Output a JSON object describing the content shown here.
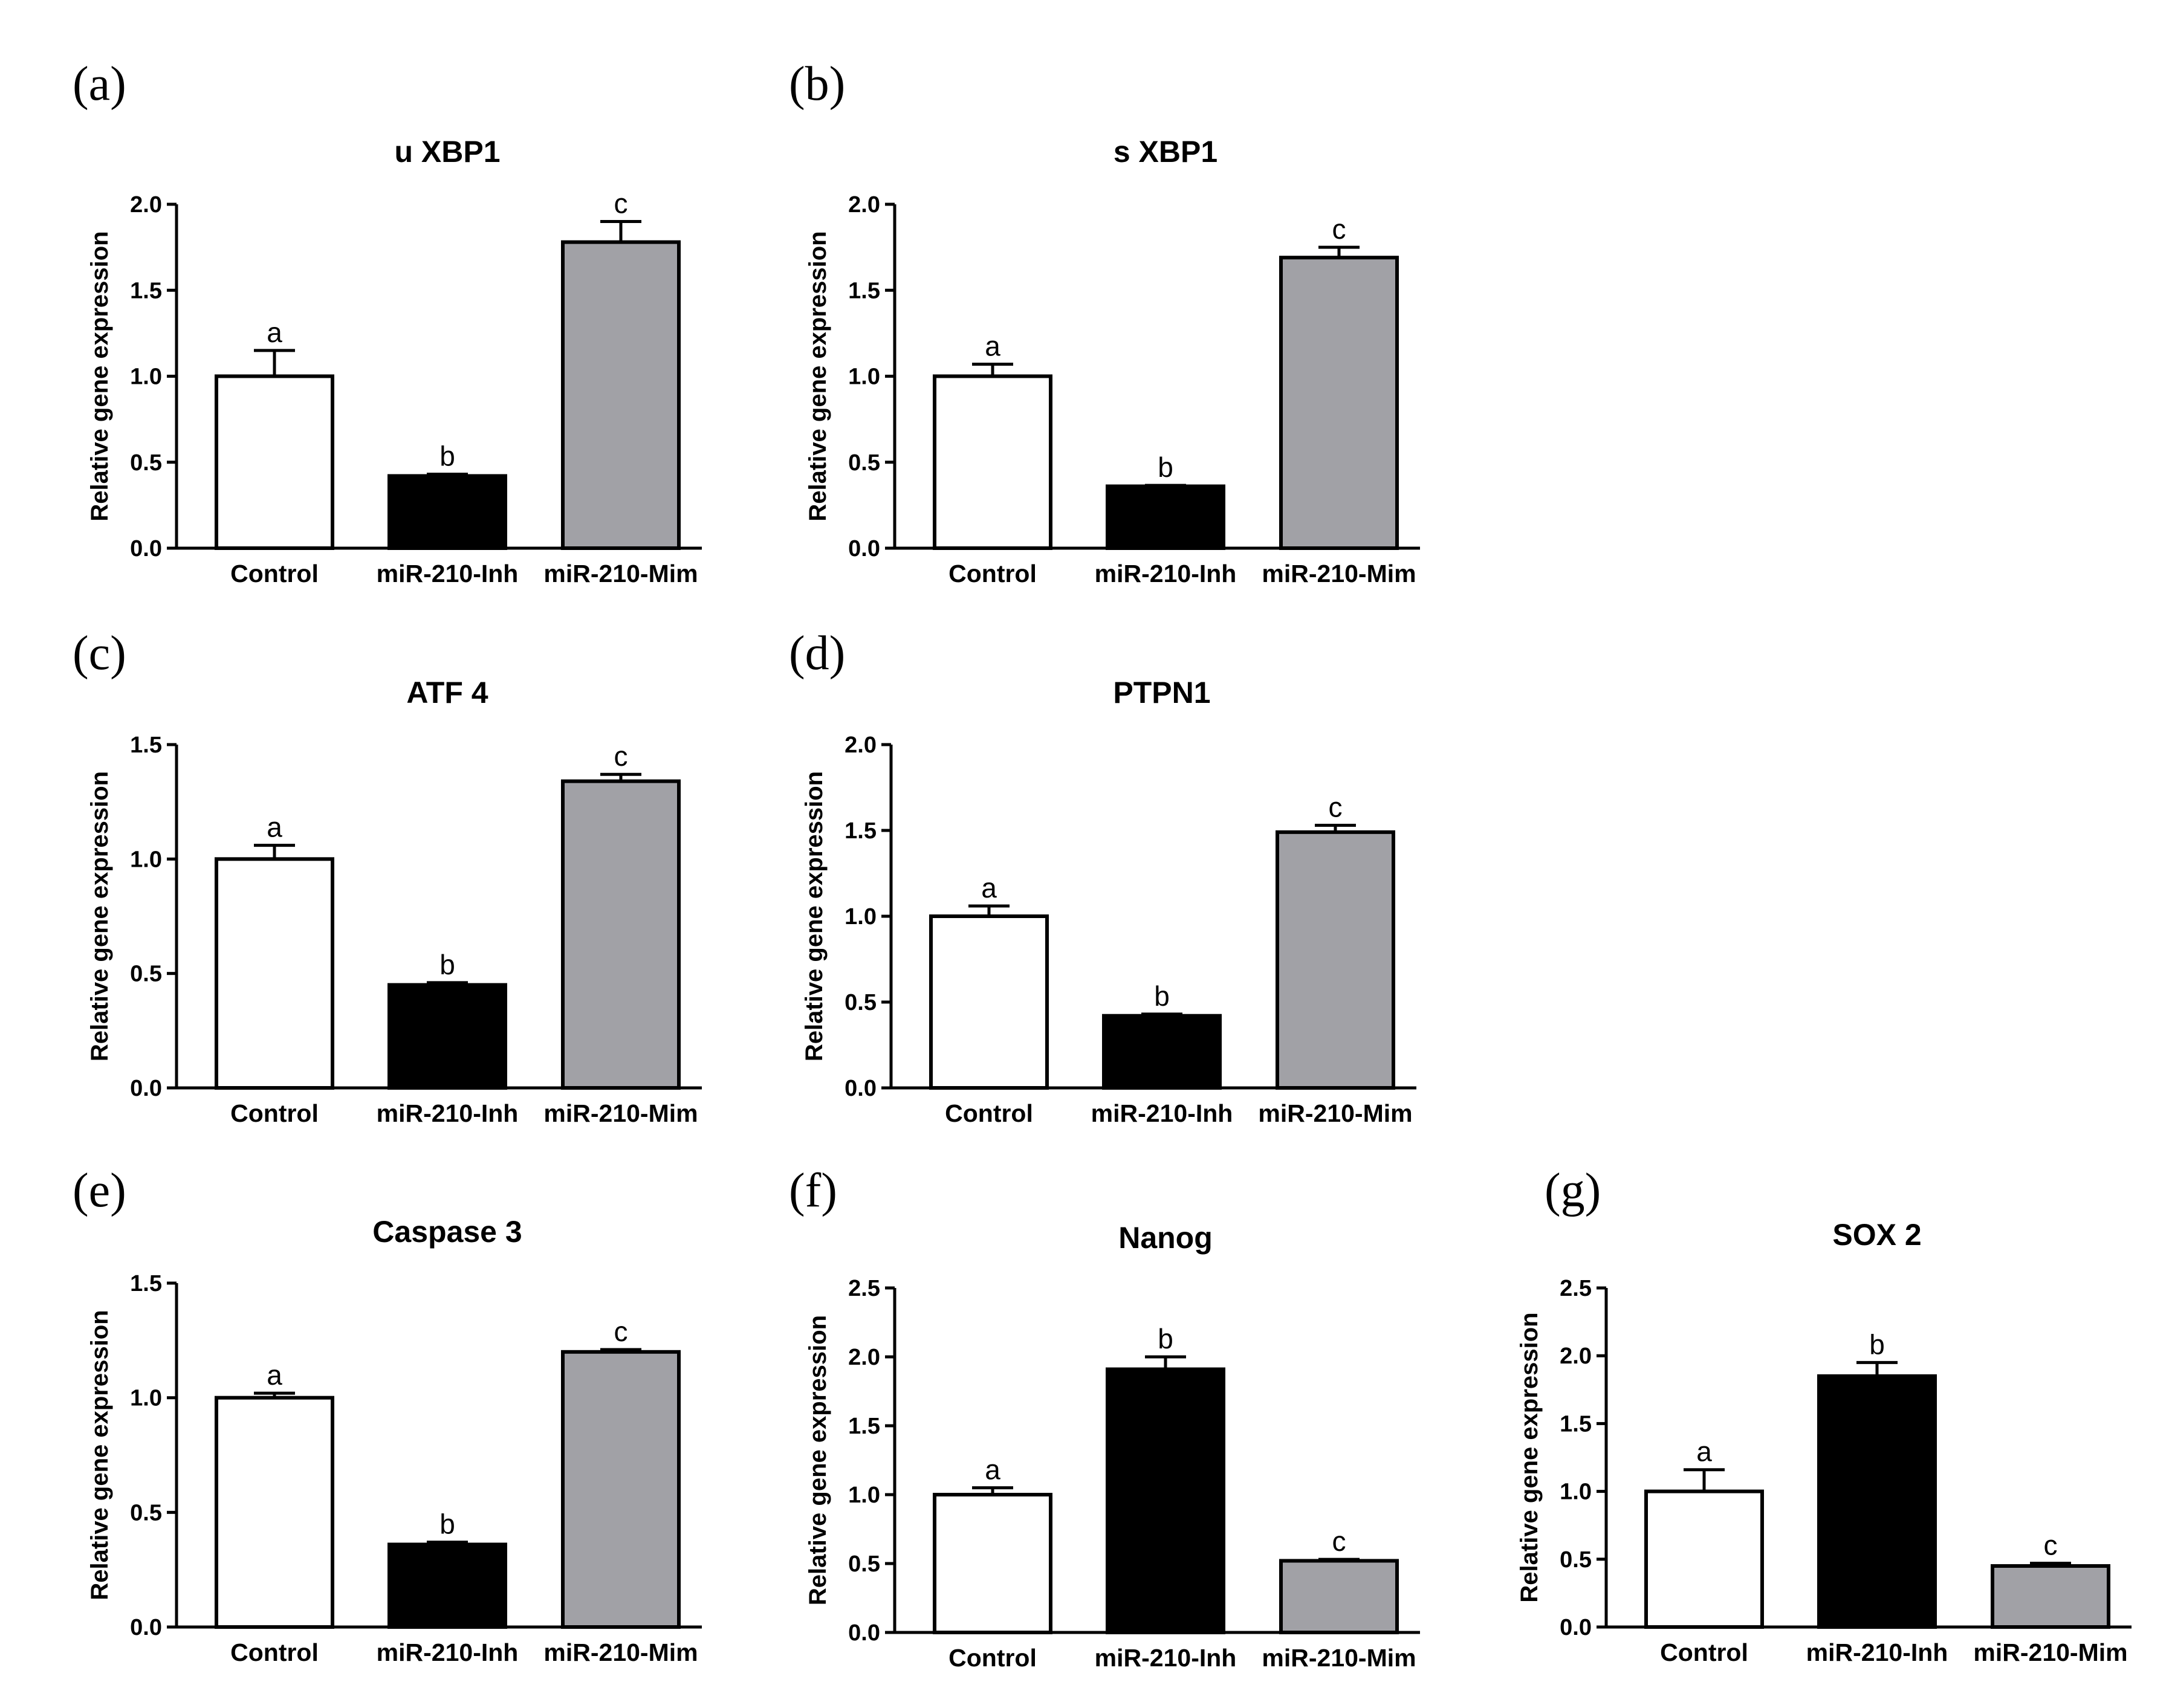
{
  "figure": {
    "background": "#ffffff"
  },
  "colors": {
    "control": "#ffffff",
    "inhibitor": "#000000",
    "mimic": "#a1a1a6",
    "stroke": "#000000"
  },
  "chart_data": [
    {
      "panel": "(a)",
      "type": "bar",
      "title": "u XBP1",
      "ylabel": "Relative gene expression",
      "categories": [
        "Control",
        "miR-210-Inh",
        "miR-210-Mim"
      ],
      "values": [
        1.0,
        0.42,
        1.78
      ],
      "errors": [
        0.15,
        0.01,
        0.12
      ],
      "significance": [
        "a",
        "b",
        "c"
      ],
      "ylim": [
        0,
        2.0
      ],
      "yticks": [
        "0.0",
        "0.5",
        "1.0",
        "1.5",
        "2.0"
      ]
    },
    {
      "panel": "(b)",
      "type": "bar",
      "title": "s XBP1",
      "ylabel": "Relative gene expression",
      "categories": [
        "Control",
        "miR-210-Inh",
        "miR-210-Mim"
      ],
      "values": [
        1.0,
        0.36,
        1.69
      ],
      "errors": [
        0.07,
        0.005,
        0.06
      ],
      "significance": [
        "a",
        "b",
        "c"
      ],
      "ylim": [
        0,
        2.0
      ],
      "yticks": [
        "0.0",
        "0.5",
        "1.0",
        "1.5",
        "2.0"
      ]
    },
    {
      "panel": "(c)",
      "type": "bar",
      "title": "ATF 4",
      "ylabel": "Relative gene expression",
      "categories": [
        "Control",
        "miR-210-Inh",
        "miR-210-Mim"
      ],
      "values": [
        1.0,
        0.45,
        1.34
      ],
      "errors": [
        0.06,
        0.01,
        0.03
      ],
      "significance": [
        "a",
        "b",
        "c"
      ],
      "ylim": [
        0,
        1.5
      ],
      "yticks": [
        "0.0",
        "0.5",
        "1.0",
        "1.5"
      ]
    },
    {
      "panel": "(d)",
      "type": "bar",
      "title": "PTPN1",
      "ylabel": "Relative gene expression",
      "categories": [
        "Control",
        "miR-210-Inh",
        "miR-210-Mim"
      ],
      "values": [
        1.0,
        0.42,
        1.49
      ],
      "errors": [
        0.06,
        0.01,
        0.04
      ],
      "significance": [
        "a",
        "b",
        "c"
      ],
      "ylim": [
        0,
        2.0
      ],
      "yticks": [
        "0.0",
        "0.5",
        "1.0",
        "1.5",
        "2.0"
      ]
    },
    {
      "panel": "(e)",
      "type": "bar",
      "title": "Caspase 3",
      "ylabel": "Relative gene expression",
      "categories": [
        "Control",
        "miR-210-Inh",
        "miR-210-Mim"
      ],
      "values": [
        1.0,
        0.36,
        1.2
      ],
      "errors": [
        0.02,
        0.01,
        0.01
      ],
      "significance": [
        "a",
        "b",
        "c"
      ],
      "ylim": [
        0,
        1.5
      ],
      "yticks": [
        "0.0",
        "0.5",
        "1.0",
        "1.5"
      ]
    },
    {
      "panel": "(f)",
      "type": "bar",
      "title": "Nanog",
      "ylabel": "Relative gene expression",
      "categories": [
        "Control",
        "miR-210-Inh",
        "miR-210-Mim"
      ],
      "values": [
        1.0,
        1.91,
        0.52
      ],
      "errors": [
        0.05,
        0.09,
        0.01
      ],
      "significance": [
        "a",
        "b",
        "c"
      ],
      "ylim": [
        0,
        2.5
      ],
      "yticks": [
        "0.0",
        "0.5",
        "1.0",
        "1.5",
        "2.0",
        "2.5"
      ]
    },
    {
      "panel": "(g)",
      "type": "bar",
      "title": "SOX 2",
      "ylabel": "Relative gene expression",
      "categories": [
        "Control",
        "miR-210-Inh",
        "miR-210-Mim"
      ],
      "values": [
        1.0,
        1.85,
        0.45
      ],
      "errors": [
        0.16,
        0.1,
        0.02
      ],
      "significance": [
        "a",
        "b",
        "c"
      ],
      "ylim": [
        0,
        2.5
      ],
      "yticks": [
        "0.0",
        "0.5",
        "1.0",
        "1.5",
        "2.0",
        "2.5"
      ]
    }
  ]
}
